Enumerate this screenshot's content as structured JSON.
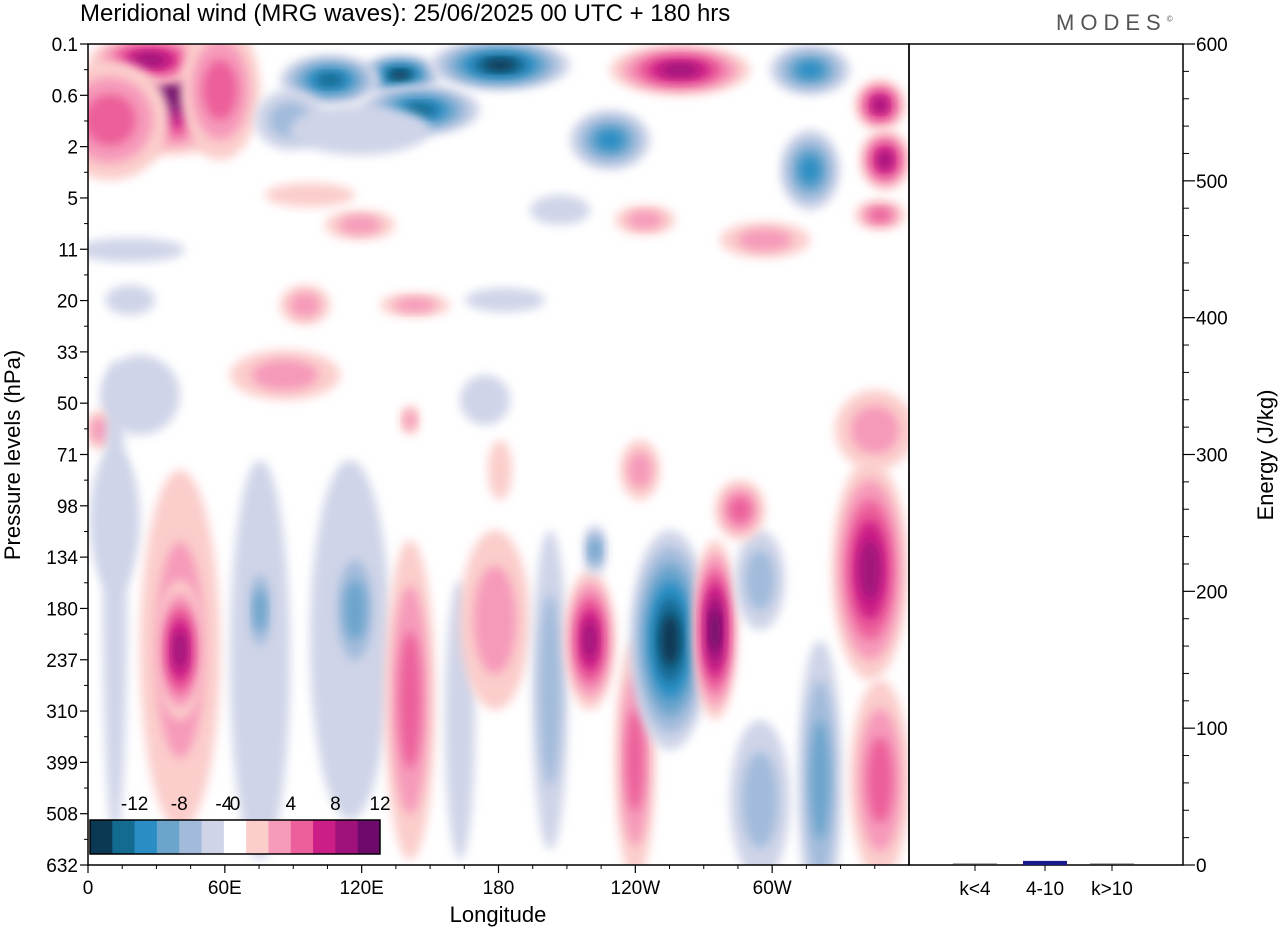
{
  "header": {
    "title": "Meridional wind (MRG waves):  25/06/2025  00 UTC  + 180 hrs",
    "brand": "MODES",
    "brand_mark": "©"
  },
  "chart_data": [
    {
      "type": "heatmap",
      "xlabel": "Longitude",
      "ylabel": "Pressure levels (hPa)",
      "x_ticks": [
        "0",
        "60E",
        "120E",
        "180",
        "120W",
        "60W"
      ],
      "x_tick_degrees": [
        0,
        60,
        120,
        180,
        240,
        300
      ],
      "xlim": [
        0,
        360
      ],
      "y_ticks": [
        "0.1",
        "0.6",
        "2",
        "5",
        "11",
        "20",
        "33",
        "50",
        "71",
        "98",
        "134",
        "180",
        "237",
        "310",
        "399",
        "508",
        "632"
      ],
      "colorbar": {
        "labels": [
          "-12",
          "-8",
          "-4",
          "0",
          "4",
          "8",
          "12"
        ],
        "levels": [
          -14,
          -12,
          -10,
          -8,
          -6,
          -4,
          -2,
          2,
          4,
          6,
          8,
          10,
          12,
          14
        ],
        "colors": [
          "#0b3852",
          "#146b92",
          "#2a8ec4",
          "#6ca4cc",
          "#a2bbdb",
          "#cfd4e8",
          "#ffffff",
          "#fbcdcb",
          "#f69aba",
          "#ec5f9a",
          "#cc1e87",
          "#a0127b",
          "#6e0a6b"
        ],
        "negative_colors": [
          "#0b3852",
          "#146b92",
          "#2a8ec4",
          "#6ca4cc",
          "#a2bbdb",
          "#cfd4e8"
        ],
        "positive_colors": [
          "#fbcdcb",
          "#f69aba",
          "#ec5f9a",
          "#cc1e87",
          "#a0127b",
          "#6e0a6b"
        ]
      }
    },
    {
      "type": "bar",
      "ylabel": "Energy (J/kg)",
      "categories": [
        "k<4",
        "4-10",
        "k>10"
      ],
      "values": [
        1,
        3,
        1
      ],
      "ylim": [
        0,
        600
      ],
      "y_ticks": [
        0,
        100,
        200,
        300,
        400,
        500,
        600
      ],
      "bar_color": "#1a1a8c"
    }
  ]
}
